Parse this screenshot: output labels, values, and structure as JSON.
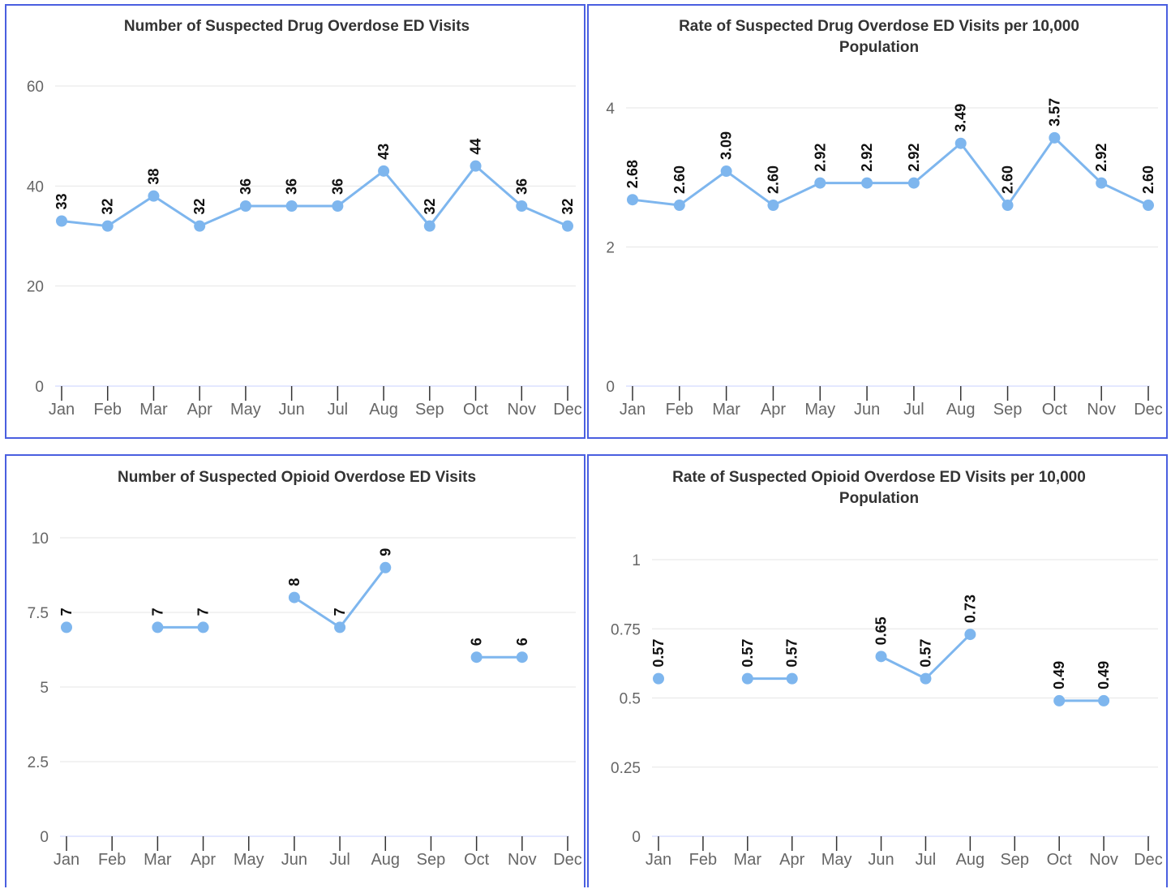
{
  "style": {
    "line_color": "#7eb6ee",
    "grid_color": "#e6e6e6",
    "axis_color": "#c8d2ff",
    "border_color": "#4a5fe0"
  },
  "chart_data": [
    {
      "type": "line",
      "title": "Number of Suspected Drug Overdose ED Visits",
      "categories": [
        "Jan",
        "Feb",
        "Mar",
        "Apr",
        "May",
        "Jun",
        "Jul",
        "Aug",
        "Sep",
        "Oct",
        "Nov",
        "Dec"
      ],
      "values": [
        33,
        32,
        38,
        32,
        36,
        36,
        36,
        43,
        32,
        44,
        36,
        32
      ],
      "value_labels": [
        "33",
        "32",
        "38",
        "32",
        "36",
        "36",
        "36",
        "43",
        "32",
        "44",
        "36",
        "32"
      ],
      "yticks": [
        0,
        20,
        40,
        60
      ],
      "ytick_labels": [
        "0",
        "20",
        "40",
        "60"
      ],
      "ylim": [
        0,
        60
      ],
      "grid": true,
      "legend": "none"
    },
    {
      "type": "line",
      "title": "Rate of Suspected Drug Overdose ED Visits per 10,000 Population",
      "title_lines": [
        "Rate of Suspected Drug Overdose ED Visits per 10,000",
        "Population"
      ],
      "categories": [
        "Jan",
        "Feb",
        "Mar",
        "Apr",
        "May",
        "Jun",
        "Jul",
        "Aug",
        "Sep",
        "Oct",
        "Nov",
        "Dec"
      ],
      "values": [
        2.68,
        2.6,
        3.09,
        2.6,
        2.92,
        2.92,
        2.92,
        3.49,
        2.6,
        3.57,
        2.92,
        2.6
      ],
      "value_labels": [
        "2.68",
        "2.60",
        "3.09",
        "2.60",
        "2.92",
        "2.92",
        "2.92",
        "3.49",
        "2.60",
        "3.57",
        "2.92",
        "2.60"
      ],
      "yticks": [
        0,
        2,
        4
      ],
      "ytick_labels": [
        "0",
        "2",
        "4"
      ],
      "ylim": [
        0,
        4
      ],
      "grid": true,
      "legend": "none"
    },
    {
      "type": "line",
      "title": "Number of Suspected Opioid Overdose ED Visits",
      "categories": [
        "Jan",
        "Feb",
        "Mar",
        "Apr",
        "May",
        "Jun",
        "Jul",
        "Aug",
        "Sep",
        "Oct",
        "Nov",
        "Dec"
      ],
      "values": [
        7,
        null,
        7,
        7,
        null,
        8,
        7,
        9,
        null,
        6,
        6,
        null
      ],
      "value_labels": [
        "7",
        "",
        "7",
        "7",
        "",
        "8",
        "7",
        "9",
        "",
        "6",
        "6",
        ""
      ],
      "yticks": [
        0,
        2.5,
        5,
        7.5,
        10
      ],
      "ytick_labels": [
        "0",
        "2.5",
        "5",
        "7.5",
        "10"
      ],
      "ylim": [
        0,
        10
      ],
      "grid": true,
      "legend": "none"
    },
    {
      "type": "line",
      "title": "Rate of Suspected Opioid Overdose ED Visits per 10,000 Population",
      "title_lines": [
        "Rate of Suspected Opioid Overdose ED Visits per 10,000",
        "Population"
      ],
      "categories": [
        "Jan",
        "Feb",
        "Mar",
        "Apr",
        "May",
        "Jun",
        "Jul",
        "Aug",
        "Sep",
        "Oct",
        "Nov",
        "Dec"
      ],
      "values": [
        0.57,
        null,
        0.57,
        0.57,
        null,
        0.65,
        0.57,
        0.73,
        null,
        0.49,
        0.49,
        null
      ],
      "value_labels": [
        "0.57",
        "",
        "0.57",
        "0.57",
        "",
        "0.65",
        "0.57",
        "0.73",
        "",
        "0.49",
        "0.49",
        ""
      ],
      "yticks": [
        0,
        0.25,
        0.5,
        0.75,
        1
      ],
      "ytick_labels": [
        "0",
        "0.25",
        "0.5",
        "0.75",
        "1"
      ],
      "ylim": [
        0,
        1
      ],
      "grid": true,
      "legend": "none"
    }
  ]
}
